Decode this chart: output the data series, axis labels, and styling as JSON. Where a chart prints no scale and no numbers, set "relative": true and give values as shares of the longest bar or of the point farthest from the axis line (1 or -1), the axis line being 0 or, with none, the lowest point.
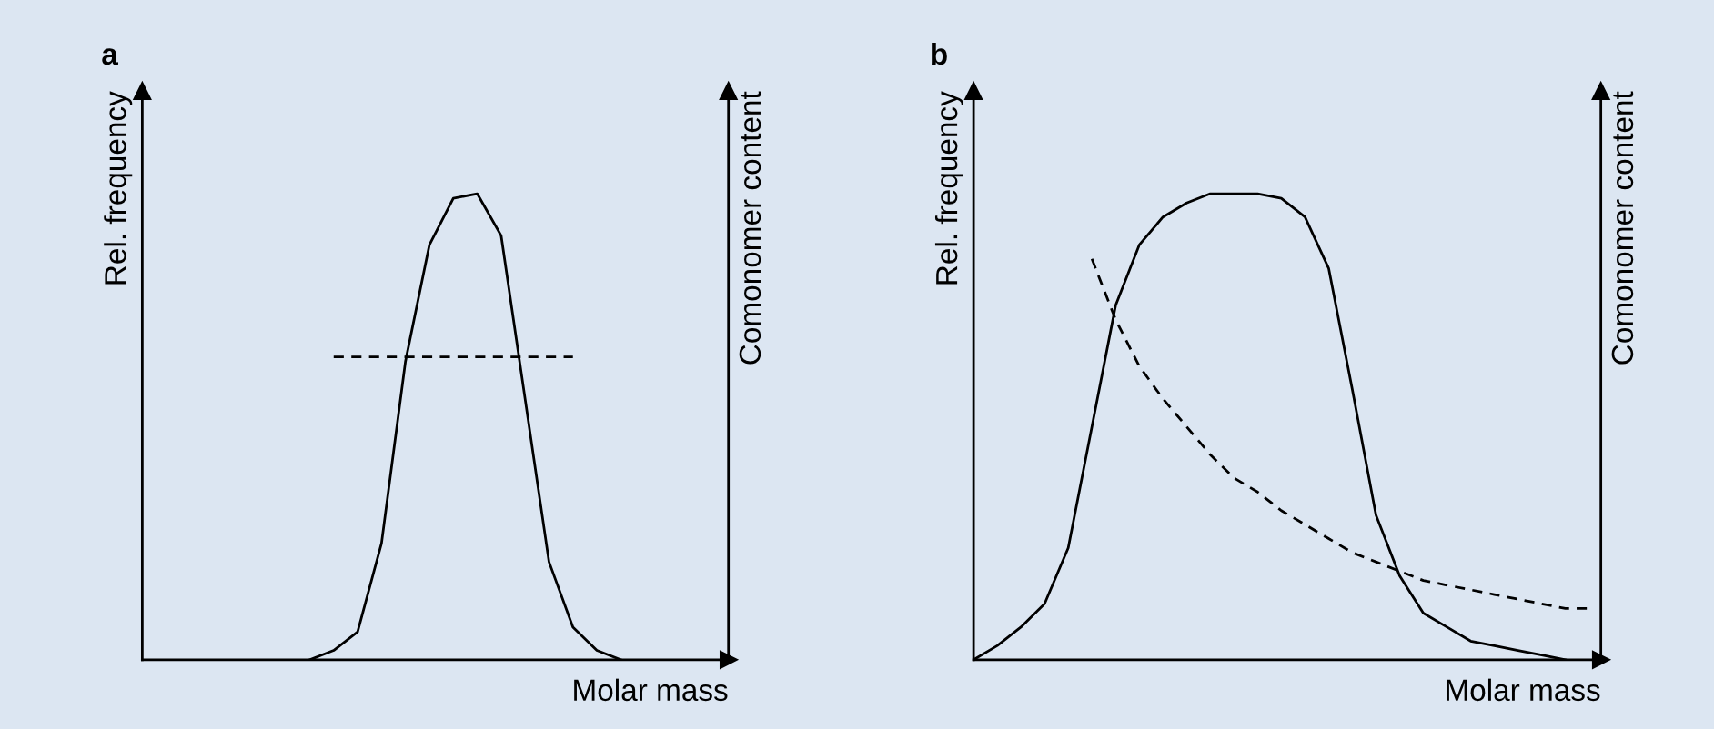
{
  "chart_data": [
    {
      "type": "line",
      "title": "a",
      "xlabel": "Molar mass",
      "ylabel": "Rel. frequency",
      "y2label": "Comonomer content",
      "relative": true,
      "categories": [
        null,
        null,
        null,
        null,
        null,
        null,
        null,
        null,
        null,
        null,
        null,
        null,
        null,
        null,
        null,
        null,
        null,
        null,
        null,
        null,
        null,
        null,
        null,
        null,
        null
      ],
      "series": [
        {
          "color": "#000000",
          "line_style": "solid",
          "values": [
            null,
            null,
            null,
            null,
            null,
            null,
            null,
            0,
            0.02,
            0.06,
            0.25,
            0.64,
            0.89,
            0.99,
            1.0,
            0.91,
            0.56,
            0.21,
            0.07,
            0.02,
            0,
            null,
            null,
            null,
            null
          ]
        },
        {
          "color": "#000000",
          "line_style": "dashed",
          "values": [
            null,
            null,
            null,
            null,
            null,
            null,
            null,
            null,
            0.65,
            0.65,
            0.65,
            0.65,
            0.65,
            0.65,
            0.65,
            0.65,
            0.65,
            0.65,
            0.65,
            null,
            null,
            null,
            null,
            null,
            null
          ]
        }
      ]
    },
    {
      "type": "line",
      "title": "b",
      "xlabel": "Molar mass",
      "ylabel": "Rel. frequency",
      "y2label": "Comonomer content",
      "relative": true,
      "categories": [
        null,
        null,
        null,
        null,
        null,
        null,
        null,
        null,
        null,
        null,
        null,
        null,
        null,
        null,
        null,
        null,
        null,
        null,
        null,
        null,
        null,
        null,
        null,
        null,
        null,
        null,
        null
      ],
      "series": [
        {
          "color": "#000000",
          "line_style": "solid",
          "values": [
            0,
            0.03,
            0.07,
            0.12,
            0.24,
            0.5,
            0.76,
            0.89,
            0.95,
            0.98,
            1.0,
            1.0,
            1.0,
            0.99,
            0.95,
            0.84,
            0.58,
            0.31,
            0.18,
            0.1,
            0.07,
            0.04,
            0.03,
            0.02,
            0.01,
            0,
            null
          ]
        },
        {
          "color": "#000000",
          "line_style": "dashed",
          "values": [
            null,
            null,
            null,
            null,
            null,
            0.86,
            0.73,
            0.63,
            0.56,
            0.5,
            0.44,
            0.39,
            0.36,
            0.32,
            0.29,
            0.26,
            0.23,
            0.21,
            0.19,
            0.17,
            0.16,
            0.15,
            0.14,
            0.13,
            0.12,
            0.11,
            0.11
          ]
        }
      ]
    }
  ]
}
